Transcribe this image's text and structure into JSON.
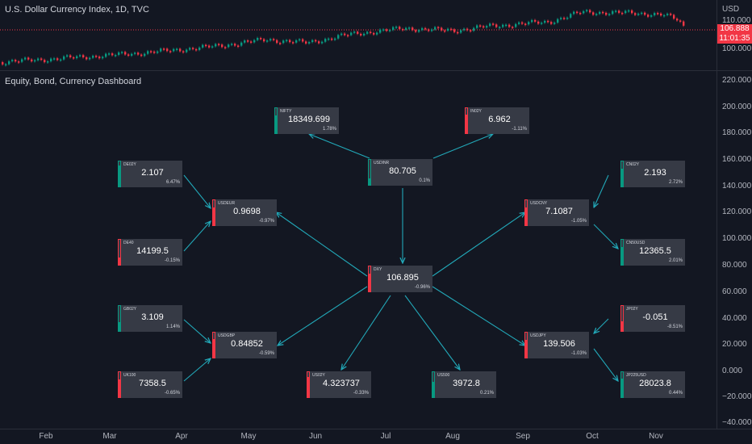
{
  "header": {
    "chart_title": "U.S. Dollar Currency Index, 1D, TVC",
    "panel_title": "Equity, Bond, Currency Dashboard"
  },
  "price_axis": {
    "currency_label": "USD",
    "top_ticks": [
      "110.000",
      "100.000"
    ],
    "last_price": "106.888",
    "countdown": "11:01:35",
    "panel_ticks": [
      "220.000",
      "200.000",
      "180.000",
      "160.000",
      "140.000",
      "120.000",
      "100.000",
      "80.000",
      "60.000",
      "40.000",
      "20.000",
      "0.000",
      "−20.000",
      "−40.000"
    ]
  },
  "time_axis": {
    "months": [
      "Feb",
      "Mar",
      "Apr",
      "May",
      "Jun",
      "Jul",
      "Aug",
      "Sep",
      "Oct",
      "Nov"
    ]
  },
  "colors": {
    "background": "#131722",
    "up": "#089981",
    "down": "#f23645",
    "arrow": "#22a8b8",
    "box": "#363a45"
  },
  "dashboard": {
    "boxes": [
      {
        "id": "nifty",
        "symbol": "NIFTY",
        "value": "18349.699",
        "change": "1.78%",
        "direction": "up",
        "level": 0.7
      },
      {
        "id": "in02y",
        "symbol": "IN02Y",
        "value": "6.962",
        "change": "-1.11%",
        "direction": "down",
        "level": 0.75
      },
      {
        "id": "usdinr",
        "symbol": "USDINR",
        "value": "80.705",
        "change": "0.1%",
        "direction": "up",
        "level": 0.25
      },
      {
        "id": "de02y",
        "symbol": "DE02Y",
        "value": "2.107",
        "change": "6.47%",
        "direction": "up",
        "level": 0.85
      },
      {
        "id": "cn02y",
        "symbol": "CN02Y",
        "value": "2.193",
        "change": "2.72%",
        "direction": "up",
        "level": 0.7
      },
      {
        "id": "usdeur",
        "symbol": "USDEUR",
        "value": "0.9698",
        "change": "-0.97%",
        "direction": "down",
        "level": 0.7
      },
      {
        "id": "usdcny",
        "symbol": "USDCNY",
        "value": "7.1087",
        "change": "-1.05%",
        "direction": "down",
        "level": 0.7
      },
      {
        "id": "de40",
        "symbol": "DE40",
        "value": "14199.5",
        "change": "-0.15%",
        "direction": "down",
        "level": 0.3
      },
      {
        "id": "cnsousd",
        "symbol": "CN50USD",
        "value": "12365.5",
        "change": "2.01%",
        "direction": "up",
        "level": 0.7
      },
      {
        "id": "dxy",
        "symbol": "DXY",
        "value": "106.895",
        "change": "-0.96%",
        "direction": "down",
        "level": 0.7
      },
      {
        "id": "gb02y",
        "symbol": "GB02Y",
        "value": "3.109",
        "change": "1.14%",
        "direction": "up",
        "level": 0.35
      },
      {
        "id": "jp02y",
        "symbol": "JP02Y",
        "value": "-0.051",
        "change": "-8.51%",
        "direction": "down",
        "level": 0.4
      },
      {
        "id": "usdgbp",
        "symbol": "USDGBP",
        "value": "0.84852",
        "change": "-0.59%",
        "direction": "down",
        "level": 0.75
      },
      {
        "id": "usdjpy",
        "symbol": "USDJPY",
        "value": "139.506",
        "change": "-1.03%",
        "direction": "down",
        "level": 0.7
      },
      {
        "id": "uk100",
        "symbol": "UK100",
        "value": "7358.5",
        "change": "-0.65%",
        "direction": "down",
        "level": 0.7
      },
      {
        "id": "us02y",
        "symbol": "US02Y",
        "value": "4.323737",
        "change": "-0.33%",
        "direction": "down",
        "level": 0.8
      },
      {
        "id": "us500",
        "symbol": "US500",
        "value": "3972.8",
        "change": "0.21%",
        "direction": "up",
        "level": 0.6
      },
      {
        "id": "jp225usd",
        "symbol": "JP225USD",
        "value": "28023.8",
        "change": "0.44%",
        "direction": "up",
        "level": 0.75
      }
    ]
  }
}
